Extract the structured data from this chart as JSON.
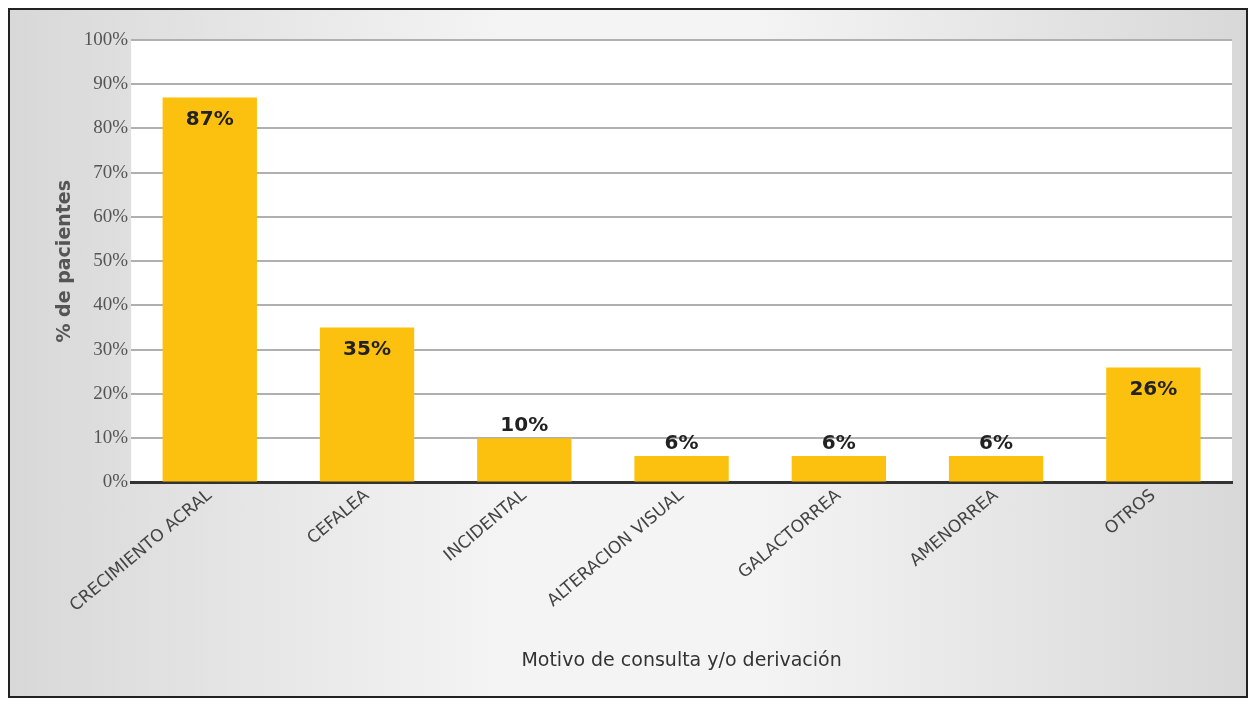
{
  "chart_data": {
    "type": "bar",
    "xlabel": "Motivo de consulta y/o derivación",
    "ylabel": "% de pacientes",
    "categories": [
      "CRECIMIENTO ACRAL",
      "CEFALEA",
      "INCIDENTAL",
      "ALTERACION VISUAL",
      "GALACTORREA",
      "AMENORREA",
      "OTROS"
    ],
    "values": [
      87,
      35,
      10,
      6,
      6,
      6,
      26
    ],
    "value_labels": [
      "87%",
      "35%",
      "10%",
      "6%",
      "6%",
      "6%",
      "26%"
    ],
    "color": "#fcc10e",
    "ylim": [
      0,
      100
    ],
    "yticks": [
      {
        "value": 0,
        "label": "0%"
      },
      {
        "value": 10,
        "label": "10%"
      },
      {
        "value": 20,
        "label": "20%"
      },
      {
        "value": 30,
        "label": "30%"
      },
      {
        "value": 40,
        "label": "40%"
      },
      {
        "value": 50,
        "label": "50%"
      },
      {
        "value": 60,
        "label": "60%"
      },
      {
        "value": 70,
        "label": "70%"
      },
      {
        "value": 80,
        "label": "80%"
      },
      {
        "value": 90,
        "label": "90%"
      },
      {
        "value": 100,
        "label": "100%"
      }
    ],
    "grid": "y",
    "legend": false
  }
}
